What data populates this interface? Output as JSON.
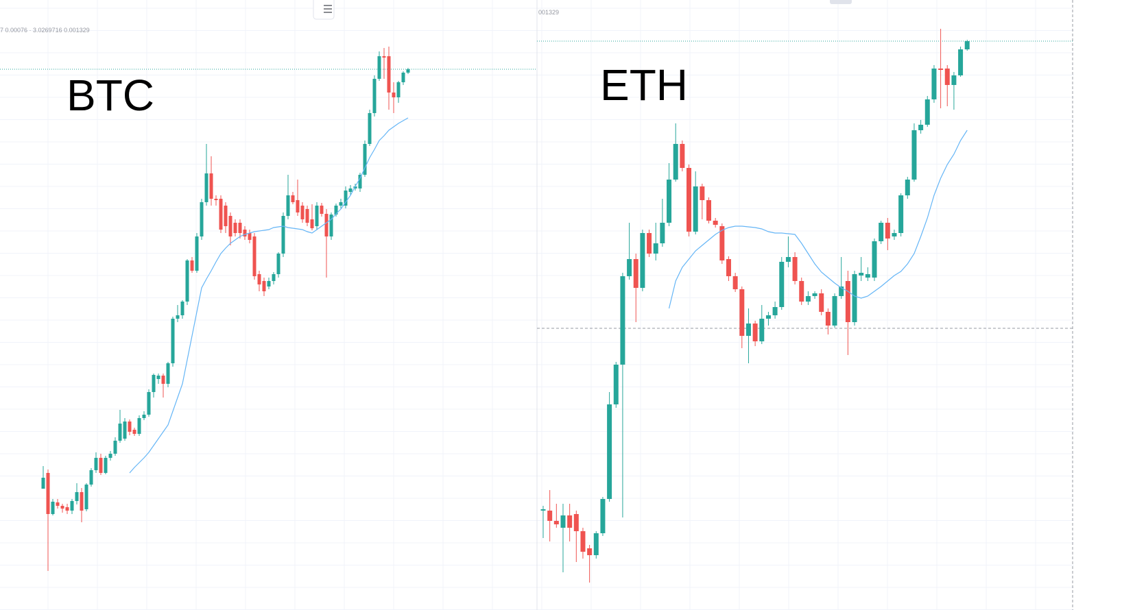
{
  "chart_data": [
    {
      "type": "candlestick",
      "title": "BTC",
      "header": "7 0.00076 · 3.0269716 0.001329",
      "ylim": [
        0,
        850
      ],
      "colors": {
        "up": "#26a69a",
        "down": "#ef5350",
        "moving_average": "#64b5f6"
      },
      "open": [
        137,
        160,
        100,
        117,
        112,
        110,
        105,
        119,
        132,
        107,
        143,
        164,
        182,
        160,
        182,
        188,
        207,
        210,
        235,
        223,
        217,
        240,
        245,
        278,
        297,
        302,
        290,
        320,
        385,
        390,
        410,
        470,
        455,
        505,
        555,
        597,
        560,
        560,
        550,
        535,
        525,
        525,
        515,
        510,
        505,
        450,
        440,
        432,
        440,
        450,
        480,
        535,
        565,
        558,
        550,
        545,
        530,
        520,
        550,
        538,
        505,
        537,
        550,
        550,
        570,
        575,
        575,
        595,
        640,
        685,
        735,
        768,
        768,
        715,
        708,
        730,
        744
      ],
      "high": [
        170,
        165,
        122,
        122,
        115,
        115,
        122,
        145,
        138,
        145,
        167,
        190,
        188,
        185,
        192,
        212,
        252,
        240,
        238,
        226,
        244,
        250,
        282,
        305,
        305,
        305,
        322,
        388,
        405,
        412,
        472,
        475,
        510,
        560,
        640,
        622,
        565,
        565,
        555,
        540,
        530,
        530,
        520,
        515,
        510,
        455,
        445,
        445,
        453,
        482,
        540,
        595,
        570,
        588,
        555,
        550,
        552,
        555,
        554,
        545,
        540,
        553,
        560,
        578,
        580,
        582,
        598,
        645,
        690,
        740,
        775,
        780,
        782,
        730,
        732,
        746,
        751
      ],
      "low": [
        137,
        17,
        98,
        108,
        102,
        100,
        100,
        114,
        88,
        104,
        140,
        160,
        157,
        158,
        178,
        185,
        204,
        207,
        215,
        214,
        214,
        237,
        242,
        270,
        290,
        270,
        285,
        315,
        380,
        385,
        405,
        452,
        452,
        500,
        550,
        550,
        550,
        510,
        510,
        492,
        505,
        502,
        500,
        495,
        442,
        425,
        418,
        428,
        435,
        445,
        475,
        530,
        552,
        535,
        525,
        520,
        514,
        515,
        534,
        445,
        500,
        534,
        546,
        546,
        566,
        572,
        570,
        592,
        637,
        680,
        732,
        735,
        690,
        685,
        700,
        726,
        742
      ],
      "close": [
        153,
        100,
        118,
        112,
        108,
        105,
        119,
        132,
        105,
        143,
        164,
        182,
        160,
        182,
        188,
        207,
        232,
        235,
        220,
        217,
        240,
        245,
        278,
        303,
        302,
        290,
        320,
        385,
        390,
        410,
        470,
        455,
        505,
        555,
        597,
        560,
        558,
        515,
        520,
        505,
        510,
        510,
        505,
        500,
        447,
        435,
        425,
        440,
        450,
        480,
        535,
        565,
        555,
        540,
        530,
        525,
        517,
        550,
        538,
        505,
        537,
        550,
        555,
        572,
        575,
        578,
        595,
        640,
        685,
        735,
        768,
        766,
        715,
        708,
        730,
        744,
        749
      ],
      "moving_average": [
        null,
        null,
        null,
        null,
        null,
        null,
        null,
        null,
        null,
        null,
        null,
        null,
        null,
        null,
        null,
        null,
        null,
        null,
        160,
        168,
        175,
        182,
        190,
        200,
        210,
        220,
        230,
        250,
        270,
        290,
        325,
        360,
        395,
        430,
        443,
        455,
        468,
        480,
        488,
        495,
        500,
        505,
        508,
        510,
        512,
        513,
        514,
        515,
        518,
        519,
        520,
        518,
        517,
        516,
        515,
        512,
        510,
        515,
        520,
        525,
        530,
        538,
        545,
        555,
        565,
        578,
        590,
        605,
        620,
        632,
        645,
        652,
        660,
        665,
        670,
        674,
        678
      ],
      "price_lines": [
        {
          "value": 749,
          "color": "#26a69a",
          "style": "dotted"
        }
      ]
    },
    {
      "type": "candlestick",
      "title": "ETH",
      "header": "001329",
      "ylim": [
        0,
        850
      ],
      "colors": {
        "up": "#26a69a",
        "down": "#ef5350",
        "moving_average": "#64b5f6"
      },
      "open": [
        105,
        105,
        90,
        80,
        98,
        100,
        75,
        50,
        40,
        72,
        122,
        260,
        318,
        447,
        472,
        430,
        510,
        480,
        495,
        525,
        588,
        640,
        605,
        512,
        578,
        558,
        528,
        520,
        472,
        447,
        428,
        360,
        378,
        352,
        385,
        390,
        402,
        468,
        475,
        440,
        410,
        418,
        422,
        395,
        375,
        418,
        440,
        380,
        448,
        445,
        445,
        498,
        525,
        505,
        510,
        565,
        588,
        660,
        668,
        705,
        750,
        750,
        726,
        740,
        778
      ],
      "high": [
        112,
        135,
        115,
        115,
        115,
        105,
        80,
        55,
        75,
        125,
        278,
        322,
        452,
        525,
        480,
        515,
        515,
        525,
        560,
        612,
        670,
        645,
        610,
        600,
        582,
        562,
        532,
        524,
        476,
        452,
        432,
        400,
        382,
        405,
        395,
        410,
        475,
        505,
        482,
        445,
        425,
        425,
        428,
        400,
        422,
        475,
        455,
        455,
        475,
        460,
        502,
        528,
        532,
        515,
        568,
        592,
        670,
        675,
        710,
        755,
        808,
        755,
        745,
        782,
        792
      ],
      "low": [
        65,
        60,
        80,
        15,
        60,
        30,
        35,
        0,
        35,
        68,
        118,
        255,
        95,
        442,
        380,
        425,
        475,
        470,
        490,
        520,
        585,
        600,
        505,
        508,
        530,
        524,
        518,
        465,
        440,
        424,
        342,
        320,
        345,
        348,
        375,
        385,
        398,
        460,
        435,
        405,
        405,
        414,
        390,
        362,
        372,
        414,
        332,
        375,
        440,
        440,
        440,
        494,
        485,
        500,
        505,
        560,
        585,
        655,
        665,
        700,
        692,
        695,
        690,
        738,
        776
      ],
      "close": [
        107,
        90,
        85,
        98,
        80,
        75,
        45,
        40,
        72,
        122,
        260,
        318,
        447,
        472,
        430,
        510,
        480,
        495,
        525,
        588,
        640,
        605,
        512,
        578,
        558,
        528,
        522,
        470,
        447,
        428,
        360,
        378,
        352,
        385,
        390,
        402,
        468,
        475,
        440,
        410,
        418,
        422,
        395,
        375,
        418,
        432,
        380,
        450,
        452,
        450,
        498,
        525,
        502,
        510,
        565,
        588,
        660,
        668,
        705,
        750,
        748,
        726,
        740,
        778,
        790
      ],
      "moving_average": [
        null,
        null,
        null,
        null,
        null,
        null,
        null,
        null,
        null,
        null,
        null,
        null,
        null,
        null,
        null,
        null,
        null,
        null,
        null,
        400,
        440,
        460,
        472,
        484,
        492,
        500,
        508,
        514,
        518,
        520,
        520,
        519,
        518,
        516,
        512,
        510,
        510,
        509,
        508,
        495,
        480,
        465,
        453,
        445,
        437,
        430,
        425,
        418,
        415,
        418,
        425,
        432,
        440,
        448,
        454,
        465,
        480,
        505,
        532,
        565,
        590,
        610,
        625,
        645,
        660
      ],
      "price_lines": [
        {
          "value": 790,
          "color": "#26a69a",
          "style": "dotted"
        },
        {
          "value": 371,
          "color": "#9598a1",
          "style": "dashed"
        }
      ]
    }
  ]
}
